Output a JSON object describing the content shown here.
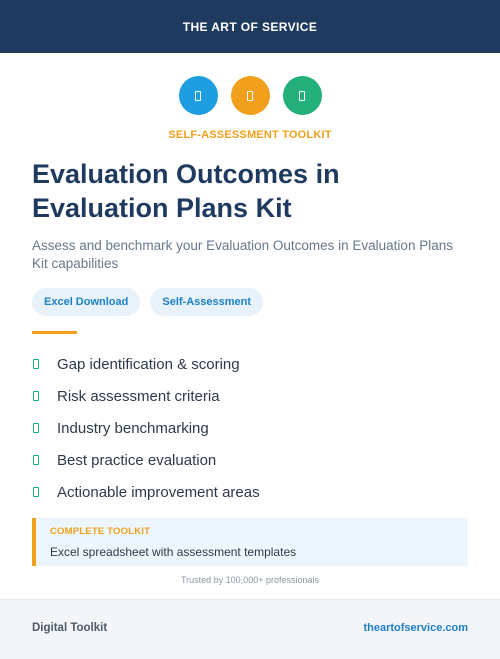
{
  "header": {
    "brand": "THE ART OF SERVICE"
  },
  "icons": [
    {
      "name": "document-icon",
      "color": "#1e9ee0"
    },
    {
      "name": "document-icon",
      "color": "#f0a01c"
    },
    {
      "name": "document-icon",
      "color": "#23b07a"
    }
  ],
  "kicker": "SELF-ASSESSMENT TOOLKIT",
  "title": "Evaluation Outcomes in Evaluation Plans Kit",
  "subtitle": "Assess and benchmark your Evaluation Outcomes in Evaluation Plans Kit capabilities",
  "tags": [
    "Excel Download",
    "Self-Assessment"
  ],
  "features": [
    "Gap identification & scoring",
    "Risk assessment criteria",
    "Industry benchmarking",
    "Best practice evaluation",
    "Actionable improvement areas"
  ],
  "callout": {
    "heading": "COMPLETE TOOLKIT",
    "body": "Excel spreadsheet with assessment templates"
  },
  "trusted": "Trusted by 100,000+ professionals",
  "footer": {
    "left": "Digital Toolkit",
    "right": "theartofservice.com"
  },
  "colors": {
    "navy": "#1f3a5f",
    "orange": "#f0a01c",
    "blue": "#1e9ee0",
    "green": "#23b07a"
  }
}
